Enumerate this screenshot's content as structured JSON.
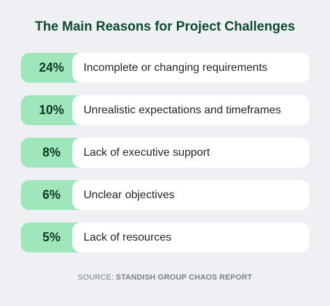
{
  "chart_data": {
    "type": "bar",
    "title": "The Main Reasons for Project Challenges",
    "categories": [
      "Incomplete or changing requirements",
      "Unrealistic expectations and timeframes",
      "Lack of executive support",
      "Unclear objectives",
      "Lack of resources"
    ],
    "values": [
      24,
      10,
      8,
      6,
      5
    ],
    "value_labels": [
      "24%",
      "10%",
      "8%",
      "6%",
      "5%"
    ],
    "unit": "%"
  },
  "source": {
    "prefix": "SOURCE: ",
    "name": "STANDISH GROUP CHAOS REPORT"
  },
  "colors": {
    "background": "#eef0f4",
    "accent": "#9fe6bc",
    "title": "#0f4a2c"
  }
}
